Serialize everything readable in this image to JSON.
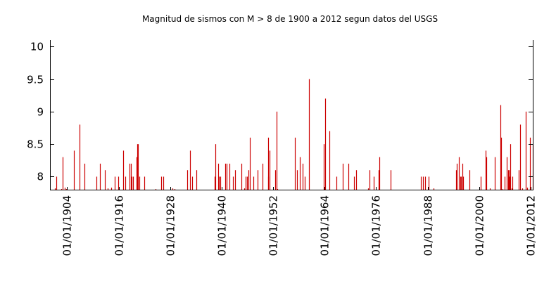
{
  "chart_data": {
    "type": "bar",
    "title": "Magnitud de sismos con M > 8 de 1900 a 2012 segun datos del USGS",
    "xlabel": "",
    "ylabel": "",
    "xlim": [
      1900.0,
      2012.5
    ],
    "ylim": [
      7.8,
      10.1
    ],
    "y_ticks": [
      8,
      8.5,
      9,
      9.5,
      10
    ],
    "y_tick_labels": [
      "8",
      "8.5",
      "9",
      "9.5",
      "10"
    ],
    "x_ticks": [
      1904,
      1916,
      1928,
      1940,
      1952,
      1964,
      1976,
      1988,
      2000,
      2012
    ],
    "x_tick_labels": [
      "01/01/1904",
      "01/01/1916",
      "01/01/1928",
      "01/01/1940",
      "01/01/1952",
      "01/01/1964",
      "01/01/1976",
      "01/01/1988",
      "01/01/2000",
      "01/01/2012"
    ],
    "grid": false,
    "legend": "none",
    "bar_color": "#cc0000",
    "series": [
      {
        "x": [
          1901.1,
          1901.5,
          1902.7,
          1903.0,
          1903.4,
          1903.8,
          1904.6,
          1905.6,
          1906.9,
          1908.0,
          1910.8,
          1911.7,
          1912.8,
          1913.5,
          1914.3,
          1915.1,
          1915.9,
          1916.2,
          1917.0,
          1917.6,
          1918.6,
          1918.9,
          1919.1,
          1919.4,
          1920.1,
          1920.4,
          1920.5,
          1920.9,
          1921.9,
          1923.4,
          1924.6,
          1925.9,
          1926.4,
          1928.5,
          1929.0,
          1931.9,
          1932.6,
          1932.9,
          1933.2,
          1934.1,
          1938.4,
          1938.6,
          1939.2,
          1939.3,
          1939.7,
          1940.8,
          1941.2,
          1941.9,
          1942.6,
          1943.1,
          1944.6,
          1945.3,
          1945.6,
          1945.9,
          1946.2,
          1946.5,
          1947.4,
          1948.3,
          1949.6,
          1950.8,
          1950.9,
          1951.2,
          1952.4,
          1952.8,
          1953.0,
          1957.0,
          1957.6,
          1958.2,
          1958.9,
          1959.3,
          1960.4,
          1963.6,
          1963.8,
          1964.2,
          1965.1,
          1966.8,
          1968.2,
          1969.6,
          1970.2,
          1970.9,
          1971.4,
          1974.2,
          1974.4,
          1975.4,
          1976.6,
          1976.7,
          1979.3,
          1986.5,
          1986.9,
          1987.4,
          1988.2,
          1989.3,
          1989.8,
          1994.6,
          1994.8,
          1995.3,
          1995.6,
          1995.8,
          1996.1,
          1996.2,
          1997.8,
          1998.3,
          2000.3,
          2001.5,
          2001.7,
          2002.5,
          2003.6,
          2004.9,
          2005.2,
          2005.4,
          2006.0,
          2006.5,
          2006.8,
          2006.9,
          2007.1,
          2007.3,
          2007.6,
          2007.7,
          2009.3,
          2009.5,
          2010.1,
          2010.8,
          2011.2,
          2011.8,
          2012.3,
          2012.5
        ],
        "values": [
          7.82,
          8.0,
          7.81,
          8.3,
          7.83,
          7.81,
          7.8,
          8.4,
          8.8,
          8.2,
          8.0,
          8.2,
          8.1,
          7.82,
          7.83,
          8.0,
          8.0,
          7.8,
          8.4,
          8.0,
          8.2,
          8.2,
          8.0,
          8.0,
          8.3,
          8.5,
          8.5,
          8.0,
          8.0,
          7.8,
          7.81,
          8.0,
          8.0,
          7.82,
          7.81,
          8.1,
          8.4,
          7.8,
          8.0,
          8.1,
          8.0,
          8.5,
          8.2,
          8.0,
          8.0,
          8.2,
          8.2,
          8.2,
          8.0,
          8.1,
          8.2,
          7.82,
          8.0,
          8.0,
          8.1,
          8.6,
          8.0,
          8.1,
          8.2,
          8.6,
          8.0,
          8.4,
          8.1,
          9.0,
          7.81,
          8.6,
          8.1,
          8.3,
          8.2,
          8.0,
          9.5,
          7.8,
          8.5,
          9.2,
          8.7,
          8.0,
          8.2,
          8.2,
          7.8,
          8.0,
          8.1,
          7.82,
          8.1,
          8.0,
          8.1,
          8.3,
          8.1,
          8.0,
          8.0,
          8.0,
          8.0,
          7.82,
          7.8,
          8.1,
          8.2,
          8.3,
          8.0,
          8.0,
          8.2,
          8.0,
          8.1,
          7.8,
          8.0,
          8.4,
          8.3,
          7.82,
          8.3,
          9.1,
          8.6,
          7.81,
          8.0,
          8.3,
          8.1,
          8.1,
          8.0,
          8.5,
          7.82,
          8.0,
          8.1,
          8.8,
          7.82,
          9.0,
          7.83,
          8.6,
          7.8,
          8.5
        ]
      }
    ]
  }
}
